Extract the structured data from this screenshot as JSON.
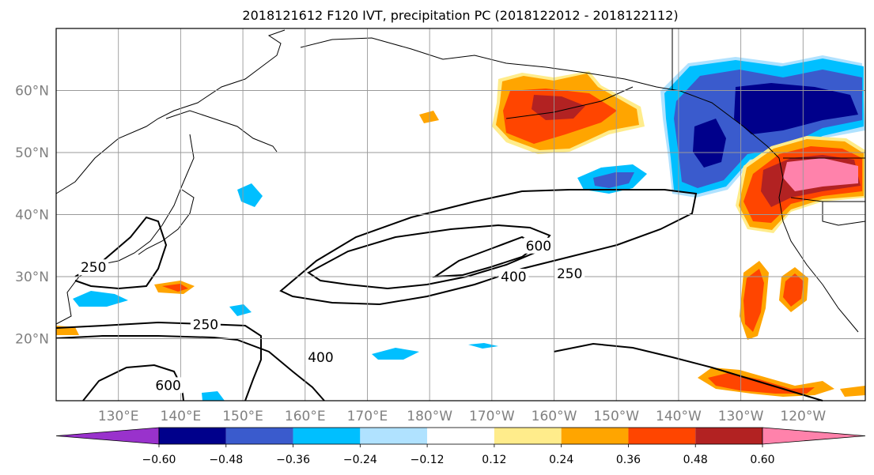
{
  "chart_data": {
    "type": "heatmap",
    "title": "2018121612 F120 IVT, precipitation PC (2018122012 - 2018122112)",
    "lon_ticks": [
      "130°E",
      "140°E",
      "150°E",
      "160°E",
      "170°E",
      "180°W",
      "170°W",
      "160°W",
      "150°W",
      "140°W",
      "130°W",
      "120°W"
    ],
    "lon_values": [
      130,
      140,
      150,
      160,
      170,
      180,
      190,
      200,
      210,
      220,
      230,
      240
    ],
    "lat_ticks": [
      "20°N",
      "30°N",
      "40°N",
      "50°N",
      "60°N"
    ],
    "lat_values": [
      20,
      30,
      40,
      50,
      60
    ],
    "lon_range": [
      120,
      250
    ],
    "lat_range": [
      10,
      70
    ],
    "grid": true,
    "colorbar": {
      "tick_labels": [
        "−0.60",
        "−0.48",
        "−0.36",
        "−0.24",
        "−0.12",
        "0.12",
        "0.24",
        "0.36",
        "0.48",
        "0.60"
      ],
      "bins": [
        {
          "range": "< -0.60",
          "color": "#9932cc"
        },
        {
          "range": "-0.60 – -0.48",
          "color": "#00008b"
        },
        {
          "range": "-0.48 – -0.36",
          "color": "#3a5bcd"
        },
        {
          "range": "-0.36 – -0.24",
          "color": "#00bfff"
        },
        {
          "range": "-0.24 – -0.12",
          "color": "#b0e2ff"
        },
        {
          "range": "-0.12 – 0.12",
          "color": "#ffffff"
        },
        {
          "range": "0.12 – 0.24",
          "color": "#ffec8b"
        },
        {
          "range": "0.24 – 0.36",
          "color": "#ffa500"
        },
        {
          "range": "0.36 – 0.48",
          "color": "#ff4500"
        },
        {
          "range": "0.48 – 0.60",
          "color": "#b22222"
        },
        {
          "range": "> 0.60",
          "color": "#ff82ab"
        }
      ]
    },
    "ivt_contour_labels": [
      {
        "text": "250",
        "lon": 126,
        "lat": 31.5
      },
      {
        "text": "250",
        "lon": 144,
        "lat": 22.3
      },
      {
        "text": "250",
        "lon": 202.5,
        "lat": 30.5
      },
      {
        "text": "400",
        "lon": 193.5,
        "lat": 30.0
      },
      {
        "text": "400",
        "lon": 162.5,
        "lat": 17.0
      },
      {
        "text": "600",
        "lon": 197.5,
        "lat": 35.0
      },
      {
        "text": "600",
        "lon": 138,
        "lat": 12.5
      }
    ]
  }
}
